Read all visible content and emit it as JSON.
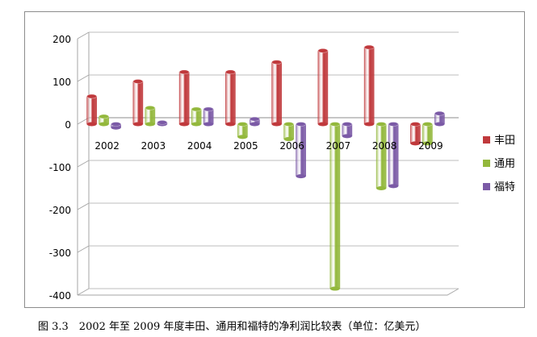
{
  "caption": "图 3.3　2002 年至 2009 年度丰田、通用和福特的净利润比较表（单位：亿美元）",
  "chart_data": {
    "type": "bar",
    "style": "3d-cylinder",
    "categories": [
      "2002",
      "2003",
      "2004",
      "2005",
      "2006",
      "2007",
      "2008",
      "2009"
    ],
    "series": [
      {
        "name": "丰田",
        "color": "#c0393c",
        "values": [
          65,
          100,
          122,
          122,
          145,
          172,
          180,
          -45
        ]
      },
      {
        "name": "通用",
        "color": "#93b83c",
        "values": [
          18,
          38,
          35,
          -30,
          -35,
          -385,
          -150,
          -45
        ]
      },
      {
        "name": "福特",
        "color": "#7b5aa6",
        "values": [
          -8,
          4,
          35,
          12,
          -122,
          -28,
          -145,
          25
        ]
      }
    ],
    "y_ticks": [
      "200",
      "100",
      "0",
      "-100",
      "-200",
      "-300",
      "-400"
    ],
    "ylim": [
      -400,
      200
    ],
    "grid": true,
    "legend": "right"
  }
}
